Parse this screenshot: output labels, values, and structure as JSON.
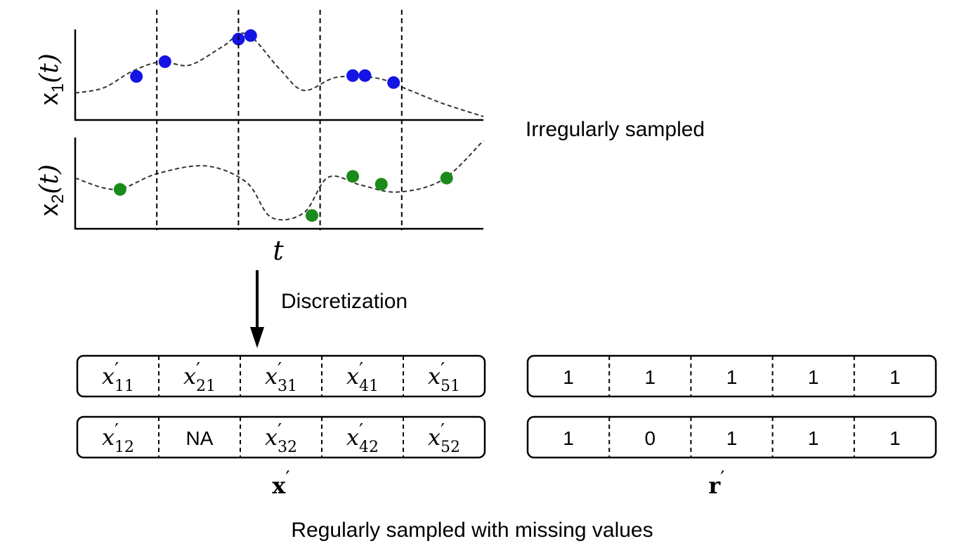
{
  "top_plot": {
    "series": [
      {
        "name": "x1",
        "ylabel_main": "x",
        "ylabel_sub": "1",
        "ylabel_arg": "(t)",
        "color": "#1414e6",
        "curve": [
          [
            0,
            0.27
          ],
          [
            0.07,
            0.33
          ],
          [
            0.14,
            0.52
          ],
          [
            0.21,
            0.63
          ],
          [
            0.28,
            0.59
          ],
          [
            0.36,
            0.8
          ],
          [
            0.42,
            0.95
          ],
          [
            0.5,
            0.55
          ],
          [
            0.56,
            0.3
          ],
          [
            0.64,
            0.45
          ],
          [
            0.74,
            0.44
          ],
          [
            0.82,
            0.3
          ],
          [
            0.9,
            0.15
          ],
          [
            1,
            0.0
          ]
        ],
        "points": [
          [
            0.15,
            0.46
          ],
          [
            0.22,
            0.63
          ],
          [
            0.4,
            0.89
          ],
          [
            0.43,
            0.93
          ],
          [
            0.68,
            0.47
          ],
          [
            0.71,
            0.47
          ],
          [
            0.78,
            0.39
          ]
        ]
      },
      {
        "name": "x2",
        "ylabel_main": "x",
        "ylabel_sub": "2",
        "ylabel_arg": "(t)",
        "color": "#1a8a1a",
        "curve": [
          [
            0,
            0.55
          ],
          [
            0.1,
            0.42
          ],
          [
            0.2,
            0.6
          ],
          [
            0.32,
            0.69
          ],
          [
            0.42,
            0.5
          ],
          [
            0.48,
            0.1
          ],
          [
            0.56,
            0.15
          ],
          [
            0.62,
            0.56
          ],
          [
            0.7,
            0.47
          ],
          [
            0.79,
            0.39
          ],
          [
            0.9,
            0.53
          ],
          [
            1,
            0.98
          ]
        ],
        "points": [
          [
            0.11,
            0.42
          ],
          [
            0.58,
            0.12
          ],
          [
            0.68,
            0.57
          ],
          [
            0.75,
            0.48
          ],
          [
            0.91,
            0.55
          ]
        ]
      }
    ],
    "vlines": [
      0.2,
      0.4,
      0.6,
      0.8
    ],
    "xlabel": "t",
    "caption": "Irregularly sampled"
  },
  "arrow_label": "Discretization",
  "x_table": {
    "rows": [
      [
        {
          "base": "x",
          "sub": "11"
        },
        {
          "base": "x",
          "sub": "21"
        },
        {
          "base": "x",
          "sub": "31"
        },
        {
          "base": "x",
          "sub": "41"
        },
        {
          "base": "x",
          "sub": "51"
        }
      ],
      [
        {
          "base": "x",
          "sub": "12"
        },
        {
          "text": "NA"
        },
        {
          "base": "x",
          "sub": "32"
        },
        {
          "base": "x",
          "sub": "42"
        },
        {
          "base": "x",
          "sub": "52"
        }
      ]
    ],
    "label": "x"
  },
  "r_table": {
    "rows": [
      [
        "1",
        "1",
        "1",
        "1",
        "1"
      ],
      [
        "1",
        "0",
        "1",
        "1",
        "1"
      ]
    ],
    "label": "r"
  },
  "bottom_caption": "Regularly sampled with missing values"
}
